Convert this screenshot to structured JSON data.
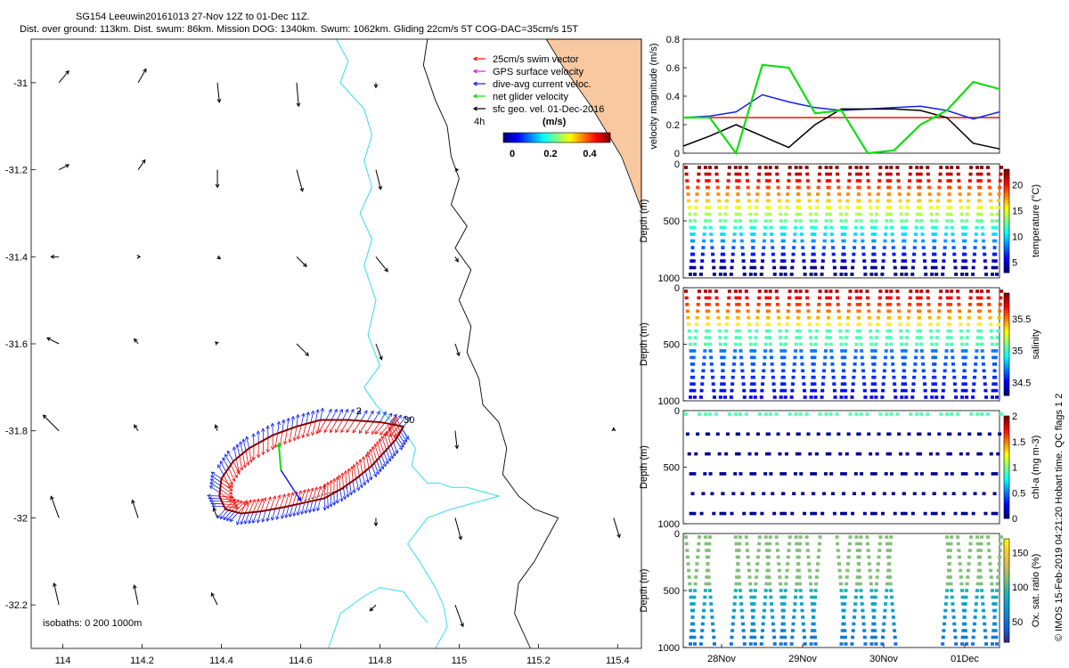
{
  "title_line1": "SG154 Leeuwin20161013 27-Nov 12Z to 01-Dec 11Z.",
  "title_line2": "Dist. over ground: 113km. Dist. swum: 86km. Mission DOG: 1340km. Swum: 1062km. Gliding 22cm/s 5T COG-DAC=35cm/s 15T",
  "side_credit": "© IMOS 15-Feb-2019 04:21:20 Hobart time. QC flags 1  2",
  "colors": {
    "land": "#f8c8a0",
    "isobath_200": "#33ddee",
    "isobath_1000": "#000000",
    "swim": "#ee1111",
    "gps": "#dd22dd",
    "dac": "#1122ee",
    "net": "#11dd11",
    "track": "#880000"
  },
  "chart_data": [
    {
      "type": "scatter",
      "name": "map",
      "x_ticks": [
        "114",
        "114.2",
        "114.4",
        "114.6",
        "114.8",
        "115",
        "115.2",
        "115.4"
      ],
      "y_ticks": [
        "-31",
        "-31.2",
        "-31.4",
        "-31.6",
        "-31.8",
        "-32",
        "-32.2"
      ],
      "xlim": [
        113.92,
        115.46
      ],
      "ylim": [
        -32.3,
        -30.9
      ],
      "legend": {
        "items": [
          {
            "label": "25cm/s swim vector",
            "color": "#ee1111"
          },
          {
            "label": "GPS surface velocity",
            "color": "#dd22dd"
          },
          {
            "label": "dive-avg current veloc.",
            "color": "#1122ee"
          },
          {
            "label": "net glider velocity",
            "color": "#11dd11"
          },
          {
            "label": "sfc geo. vel. 01-Dec-2016",
            "color": "#000000"
          }
        ],
        "label_4h": "4h",
        "colorbar_unit": "(m/s)",
        "colorbar_ticks": [
          "0",
          "0.2",
          "0.4"
        ]
      },
      "isobaths_label": "isobaths: 0   200  1000m",
      "annotations": [
        {
          "text": "2",
          "x": 114.74,
          "y": -31.77
        },
        {
          "text": "30",
          "x": 114.86,
          "y": -31.79
        }
      ],
      "track": [
        [
          114.86,
          -31.79
        ],
        [
          114.8,
          -31.78
        ],
        [
          114.72,
          -31.775
        ],
        [
          114.65,
          -31.775
        ],
        [
          114.59,
          -31.79
        ],
        [
          114.53,
          -31.81
        ],
        [
          114.47,
          -31.84
        ],
        [
          114.43,
          -31.87
        ],
        [
          114.4,
          -31.91
        ],
        [
          114.395,
          -31.95
        ],
        [
          114.41,
          -31.98
        ],
        [
          114.45,
          -31.99
        ],
        [
          114.5,
          -31.985
        ],
        [
          114.56,
          -31.975
        ],
        [
          114.61,
          -31.965
        ],
        [
          114.66,
          -31.955
        ],
        [
          114.7,
          -31.935
        ],
        [
          114.74,
          -31.91
        ],
        [
          114.78,
          -31.88
        ],
        [
          114.81,
          -31.85
        ],
        [
          114.84,
          -31.82
        ],
        [
          114.86,
          -31.79
        ]
      ],
      "sfc_vectors": [
        {
          "lon": 113.99,
          "lat": -31.0,
          "u": 0.1,
          "v": 0.12
        },
        {
          "lon": 114.19,
          "lat": -31.0,
          "u": 0.08,
          "v": 0.14
        },
        {
          "lon": 114.39,
          "lat": -31.0,
          "u": 0.02,
          "v": -0.2
        },
        {
          "lon": 114.59,
          "lat": -31.0,
          "u": 0.02,
          "v": -0.24
        },
        {
          "lon": 114.79,
          "lat": -31.0,
          "u": 0.0,
          "v": -0.05
        },
        {
          "lon": 113.99,
          "lat": -31.2,
          "u": 0.1,
          "v": 0.05
        },
        {
          "lon": 114.19,
          "lat": -31.2,
          "u": 0.07,
          "v": 0.1
        },
        {
          "lon": 114.39,
          "lat": -31.2,
          "u": 0.0,
          "v": -0.18
        },
        {
          "lon": 114.59,
          "lat": -31.2,
          "u": 0.06,
          "v": -0.22
        },
        {
          "lon": 114.79,
          "lat": -31.2,
          "u": 0.05,
          "v": -0.2
        },
        {
          "lon": 114.99,
          "lat": -31.2,
          "u": 0.03,
          "v": 0.0
        },
        {
          "lon": 113.99,
          "lat": -31.4,
          "u": -0.08,
          "v": 0.0
        },
        {
          "lon": 114.19,
          "lat": -31.4,
          "u": 0.02,
          "v": 0.0
        },
        {
          "lon": 114.39,
          "lat": -31.4,
          "u": 0.03,
          "v": -0.02
        },
        {
          "lon": 114.59,
          "lat": -31.4,
          "u": 0.1,
          "v": -0.1
        },
        {
          "lon": 114.79,
          "lat": -31.4,
          "u": 0.12,
          "v": -0.15
        },
        {
          "lon": 114.99,
          "lat": -31.4,
          "u": 0.03,
          "v": -0.05
        },
        {
          "lon": 113.99,
          "lat": -31.6,
          "u": -0.12,
          "v": 0.06
        },
        {
          "lon": 114.19,
          "lat": -31.6,
          "u": -0.04,
          "v": 0.05
        },
        {
          "lon": 114.39,
          "lat": -31.6,
          "u": -0.02,
          "v": 0.02
        },
        {
          "lon": 114.59,
          "lat": -31.6,
          "u": 0.12,
          "v": -0.12
        },
        {
          "lon": 114.79,
          "lat": -31.6,
          "u": 0.06,
          "v": -0.16
        },
        {
          "lon": 114.99,
          "lat": -31.6,
          "u": 0.04,
          "v": -0.12
        },
        {
          "lon": 113.99,
          "lat": -31.8,
          "u": -0.16,
          "v": 0.16
        },
        {
          "lon": 114.19,
          "lat": -31.8,
          "u": -0.04,
          "v": 0.06
        },
        {
          "lon": 114.39,
          "lat": -31.8,
          "u": -0.02,
          "v": 0.06
        },
        {
          "lon": 114.99,
          "lat": -31.8,
          "u": 0.02,
          "v": -0.18
        },
        {
          "lon": 115.39,
          "lat": -31.8,
          "u": 0.0,
          "v": 0.03
        },
        {
          "lon": 113.99,
          "lat": -32.0,
          "u": -0.08,
          "v": 0.22
        },
        {
          "lon": 114.19,
          "lat": -32.0,
          "u": -0.06,
          "v": 0.18
        },
        {
          "lon": 114.39,
          "lat": -32.0,
          "u": -0.04,
          "v": 0.1
        },
        {
          "lon": 114.79,
          "lat": -32.0,
          "u": 0.0,
          "v": -0.08
        },
        {
          "lon": 114.99,
          "lat": -32.0,
          "u": 0.06,
          "v": -0.22
        },
        {
          "lon": 115.39,
          "lat": -32.0,
          "u": 0.06,
          "v": -0.2
        },
        {
          "lon": 113.99,
          "lat": -32.2,
          "u": -0.05,
          "v": 0.22
        },
        {
          "lon": 114.19,
          "lat": -32.2,
          "u": -0.04,
          "v": 0.2
        },
        {
          "lon": 114.39,
          "lat": -32.2,
          "u": -0.06,
          "v": 0.12
        },
        {
          "lon": 114.79,
          "lat": -32.2,
          "u": -0.06,
          "v": -0.06
        },
        {
          "lon": 114.99,
          "lat": -32.2,
          "u": 0.08,
          "v": -0.22
        }
      ]
    },
    {
      "type": "line",
      "name": "velocity",
      "ylabel": "velocity magnitude (m/s)",
      "ylim": [
        0,
        0.8
      ],
      "y_ticks": [
        "0",
        "0.2",
        "0.4",
        "0.6",
        "0.8"
      ],
      "series": [
        {
          "color": "#ee1111",
          "values": [
            0.25,
            0.25,
            0.25,
            0.25,
            0.25,
            0.25,
            0.25,
            0.25,
            0.25,
            0.25,
            0.25,
            0.25,
            0.25
          ]
        },
        {
          "color": "#1122ee",
          "values": [
            0.25,
            0.26,
            0.29,
            0.41,
            0.36,
            0.32,
            0.3,
            0.31,
            0.32,
            0.33,
            0.3,
            0.24,
            0.29
          ]
        },
        {
          "color": "#000000",
          "values": [
            0.05,
            0.12,
            0.2,
            0.12,
            0.04,
            0.2,
            0.31,
            0.31,
            0.31,
            0.3,
            0.25,
            0.07,
            0.03
          ]
        },
        {
          "color": "#11dd11",
          "values": [
            0.25,
            0.25,
            0.0,
            0.62,
            0.6,
            0.28,
            0.3,
            0.0,
            0.02,
            0.2,
            0.3,
            0.5,
            0.45
          ]
        }
      ]
    },
    {
      "type": "scatter",
      "name": "temperature",
      "ylabel": "Depth (m)",
      "colorbar_label": "temperature (°C)",
      "y_ticks": [
        "0",
        "500",
        "1000"
      ],
      "colorbar_ticks": [
        "5",
        "10",
        "15",
        "20"
      ],
      "clim": [
        3,
        23
      ],
      "profiles": 21
    },
    {
      "type": "scatter",
      "name": "salinity",
      "ylabel": "Depth (m)",
      "colorbar_label": "salinity",
      "y_ticks": [
        "0",
        "500",
        "1000"
      ],
      "colorbar_ticks": [
        "34.5",
        "35",
        "35.5"
      ],
      "clim": [
        34.3,
        35.9
      ],
      "profiles": 21
    },
    {
      "type": "scatter",
      "name": "chl",
      "ylabel": "Depth (m)",
      "colorbar_label": "chl-a (mg m-3)",
      "y_ticks": [
        "0",
        "500",
        "1000"
      ],
      "colorbar_ticks": [
        "0",
        "0.5",
        "1",
        "1.5",
        "2"
      ],
      "clim": [
        0,
        2
      ],
      "profiles": 21
    },
    {
      "type": "scatter",
      "name": "oxygen",
      "ylabel": "Depth (m)",
      "colorbar_label": "Ox. sat. ratio (%)",
      "y_ticks": [
        "0",
        "500",
        "1000"
      ],
      "colorbar_ticks": [
        "50",
        "100",
        "150"
      ],
      "clim": [
        20,
        170
      ],
      "x_ticks": [
        "28Nov",
        "29Nov",
        "30Nov",
        "01Dec"
      ],
      "profiles": 21
    }
  ]
}
